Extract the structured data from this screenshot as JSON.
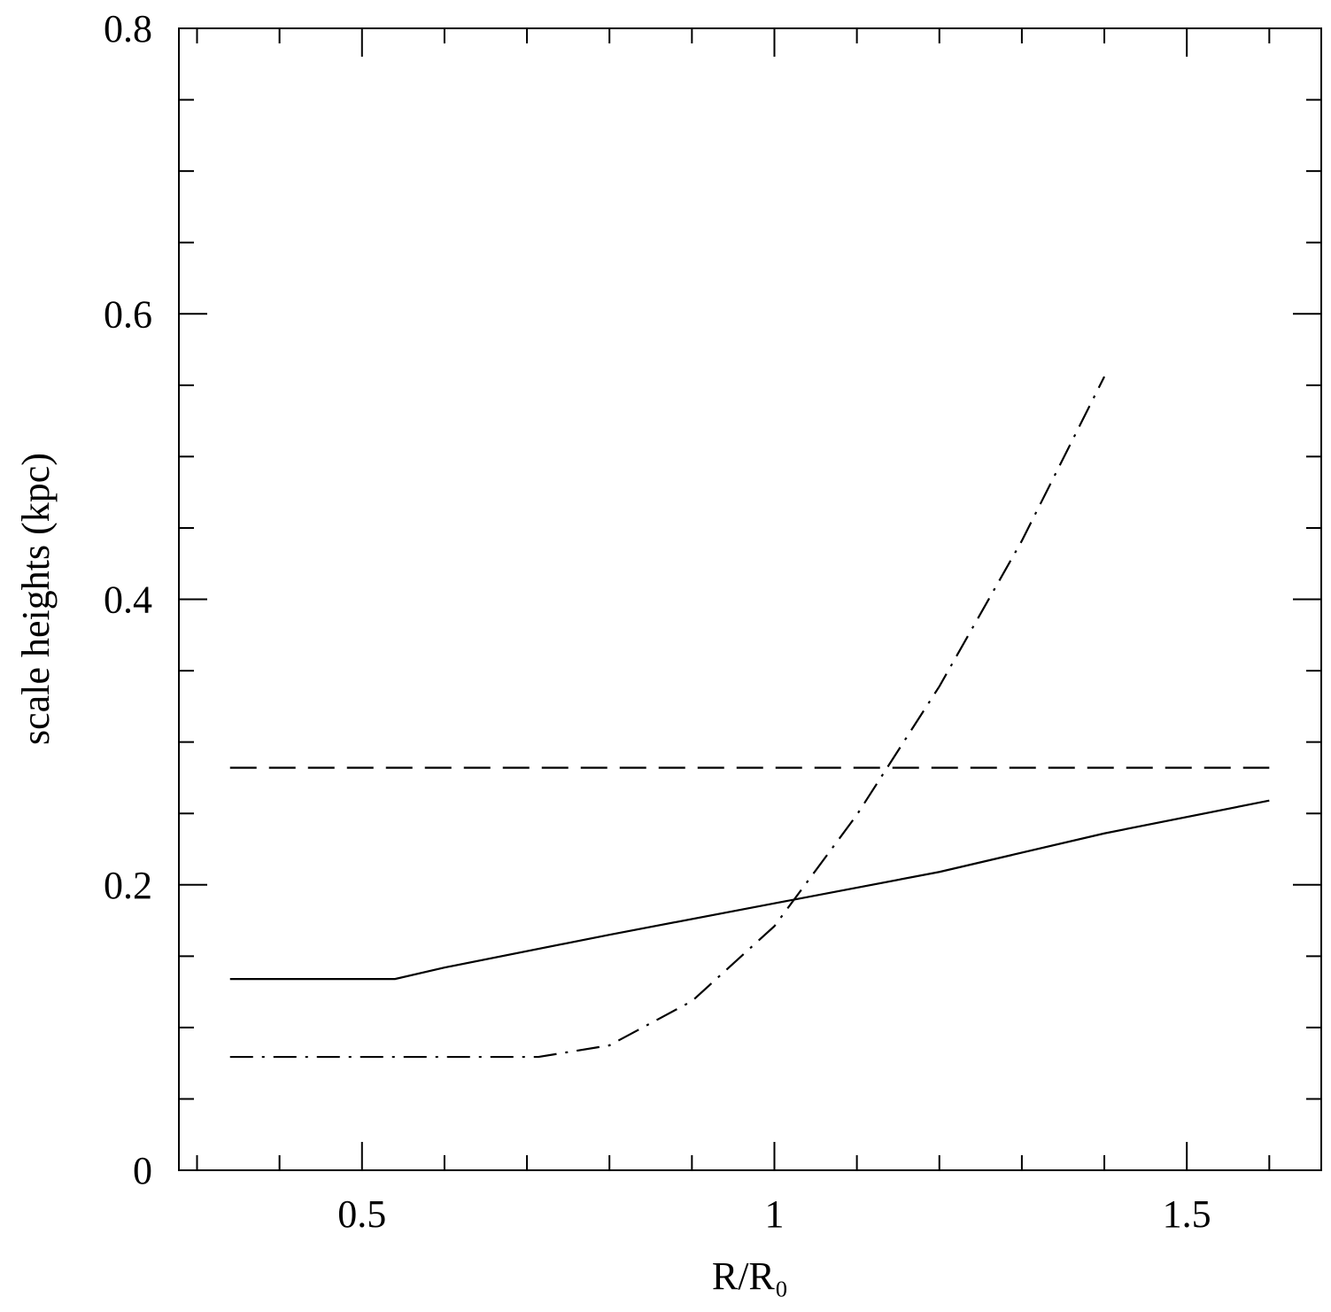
{
  "chart_data": {
    "type": "line",
    "xlabel": "R/R₀",
    "ylabel": "scale heights (kpc)",
    "xlim": [
      0.278,
      1.663
    ],
    "ylim": [
      0,
      0.8
    ],
    "xticks": [
      0.5,
      1,
      1.5
    ],
    "yticks": [
      0,
      0.2,
      0.4,
      0.6,
      0.8
    ],
    "xticks_minor": [
      0.3,
      0.4,
      0.6,
      0.7,
      0.8,
      0.9,
      1.1,
      1.2,
      1.3,
      1.4,
      1.6
    ],
    "yticks_minor": [
      0.05,
      0.1,
      0.15,
      0.25,
      0.3,
      0.35,
      0.45,
      0.5,
      0.55,
      0.65,
      0.7,
      0.75
    ],
    "series": [
      {
        "color": "#000000",
        "dash": "solid",
        "x": [
          0.34,
          0.54,
          0.6,
          0.8,
          1.0,
          1.2,
          1.4,
          1.6
        ],
        "values": [
          0.134,
          0.134,
          0.142,
          0.165,
          0.187,
          0.209,
          0.236,
          0.259
        ]
      },
      {
        "color": "#000000",
        "dash": "dashed",
        "x": [
          0.34,
          1.6
        ],
        "values": [
          0.282,
          0.282
        ]
      },
      {
        "color": "#000000",
        "dash": "dashdot",
        "x": [
          0.34,
          0.5,
          0.714,
          0.8,
          0.9,
          1.0,
          1.1,
          1.2,
          1.3,
          1.4
        ],
        "values": [
          0.0794,
          0.0794,
          0.0794,
          0.0875,
          0.1185,
          0.171,
          0.249,
          0.339,
          0.441,
          0.556
        ]
      }
    ]
  }
}
